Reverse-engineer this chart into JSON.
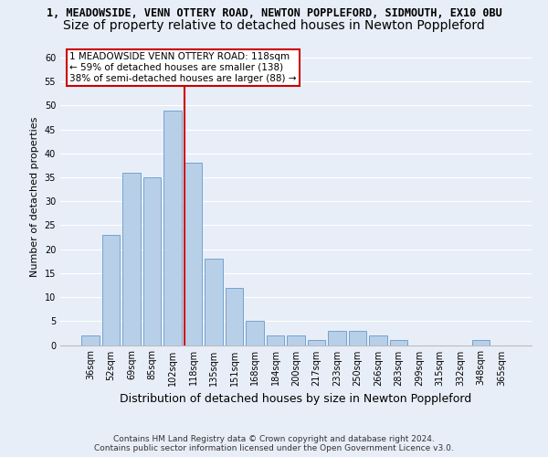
{
  "title1": "1, MEADOWSIDE, VENN OTTERY ROAD, NEWTON POPPLEFORD, SIDMOUTH, EX10 0BU",
  "title2": "Size of property relative to detached houses in Newton Poppleford",
  "xlabel": "Distribution of detached houses by size in Newton Poppleford",
  "ylabel": "Number of detached properties",
  "categories": [
    "36sqm",
    "52sqm",
    "69sqm",
    "85sqm",
    "102sqm",
    "118sqm",
    "135sqm",
    "151sqm",
    "168sqm",
    "184sqm",
    "200sqm",
    "217sqm",
    "233sqm",
    "250sqm",
    "266sqm",
    "283sqm",
    "299sqm",
    "315sqm",
    "332sqm",
    "348sqm",
    "365sqm"
  ],
  "values": [
    2,
    23,
    36,
    35,
    49,
    38,
    18,
    12,
    5,
    2,
    2,
    1,
    3,
    3,
    2,
    1,
    0,
    0,
    0,
    1,
    0
  ],
  "bar_color": "#b8cfe8",
  "bar_edgecolor": "#6699cc",
  "highlight_index": 5,
  "highlight_line_color": "#cc0000",
  "ylim": [
    0,
    62
  ],
  "yticks": [
    0,
    5,
    10,
    15,
    20,
    25,
    30,
    35,
    40,
    45,
    50,
    55,
    60
  ],
  "annotation_line1": "1 MEADOWSIDE VENN OTTERY ROAD: 118sqm",
  "annotation_line2": "← 59% of detached houses are smaller (138)",
  "annotation_line3": "38% of semi-detached houses are larger (88) →",
  "annotation_box_color": "#cc0000",
  "footer_line1": "Contains HM Land Registry data © Crown copyright and database right 2024.",
  "footer_line2": "Contains public sector information licensed under the Open Government Licence v3.0.",
  "background_color": "#e8eef8",
  "fig_background_color": "#e8eef8",
  "grid_color": "#ffffff",
  "title1_fontsize": 8.5,
  "title2_fontsize": 10,
  "ylabel_fontsize": 8,
  "xlabel_fontsize": 9,
  "tick_fontsize": 7,
  "footer_fontsize": 6.5,
  "ann_fontsize": 7.5
}
